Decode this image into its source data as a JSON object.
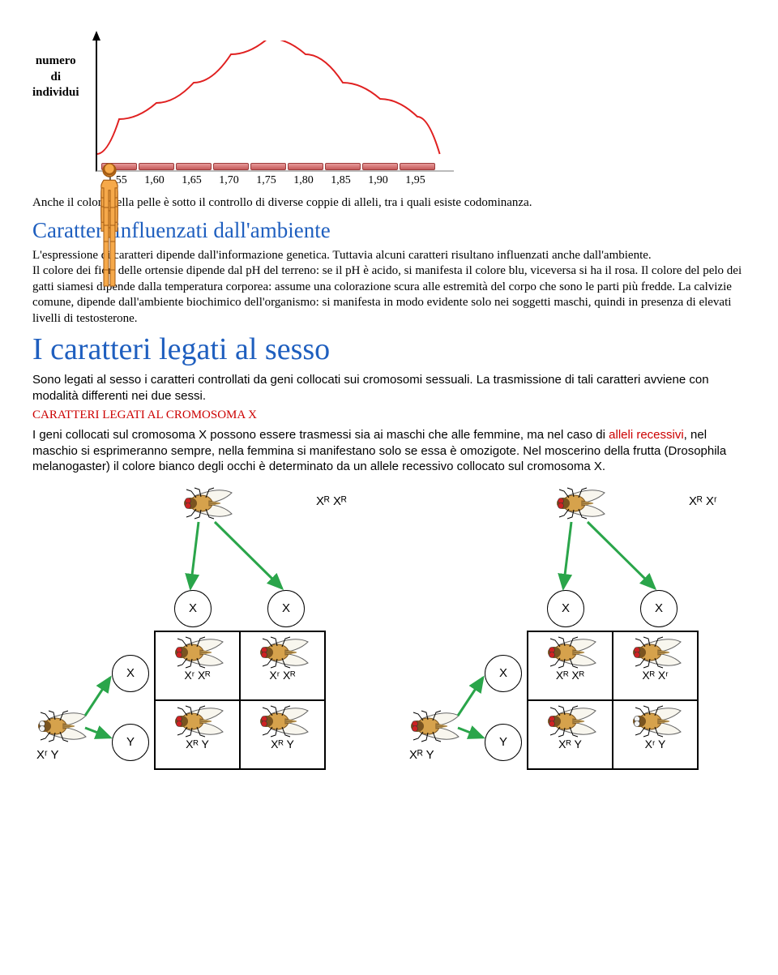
{
  "histogram": {
    "axis_label_lines": [
      "numero",
      "di",
      "individui"
    ],
    "x_ticks": [
      "1,55",
      "1,60",
      "1,65",
      "1,70",
      "1,75",
      "1,80",
      "1,85",
      "1,90",
      "1,95"
    ],
    "heights": [
      55,
      75,
      100,
      135,
      155,
      135,
      100,
      80,
      58
    ],
    "person_fill": "#f6a94a",
    "person_stroke": "#a35a12",
    "curve_color": "#e02020",
    "curve_width": 2
  },
  "text": {
    "codominanza": "Anche il colore della pelle è sotto il controllo di diverse coppie di alleli, tra i quali esiste codominanza.",
    "h_env": "Caratteri influenzati dall'ambiente",
    "env_body": "L'espressione di caratteri dipende dall'informazione genetica. Tuttavia alcuni caratteri risultano influenzati anche dall'ambiente.\nIl colore dei fiori delle ortensie dipende dal pH del terreno: se il pH è acido, si manifesta il colore blu, viceversa si ha il rosa. Il colore del pelo dei gatti siamesi dipende dalla temperatura corporea: assume una colorazione scura alle estremità del corpo che sono le parti più fredde. La calvizie comune, dipende dall'ambiente biochimico dell'organismo: si manifesta in modo evidente solo nei soggetti maschi, quindi in presenza di elevati livelli di testosterone.",
    "h_sex": "I caratteri legati al sesso",
    "sex_intro": "Sono legati al sesso i caratteri controllati da geni  collocati sui cromosomi sessuali. La trasmissione di tali caratteri avviene con modalità differenti nei due sessi.",
    "red_sub": "CARATTERI LEGATI AL CROMOSOMA X",
    "x_body_pre": "I geni collocati sul cromosoma X possono essere trasmessi sia ai maschi che alle femmine, ma nel caso di ",
    "x_body_red": "alleli recessivi",
    "x_body_post": ", nel maschio si esprimeranno sempre, nella femmina si manifestano solo se essa è omozigote. Nel moscerino della frutta (Drosophila melanogaster) il colore bianco degli occhi è determinato da un allele recessivo collocato sul cromosoma X."
  },
  "punnett": {
    "arrow_color": "#2aa54a",
    "fly_body": "#d6a24c",
    "fly_body_dark": "#7a5420",
    "eye_red": "#cc2222",
    "eye_white": "#f3f3f3",
    "left": {
      "mother_geno": "Xᴿ Xᴿ",
      "father_geno": "Xʳ Y",
      "mother_eye": "red",
      "father_eye": "white",
      "col_gametes": [
        "X",
        "X"
      ],
      "row_gametes": [
        "X",
        "Y"
      ],
      "cells": [
        {
          "eye": "red",
          "geno": "Xʳ Xᴿ"
        },
        {
          "eye": "red",
          "geno": "Xʳ Xᴿ"
        },
        {
          "eye": "red",
          "geno": "Xᴿ Y"
        },
        {
          "eye": "red",
          "geno": "Xᴿ Y"
        }
      ]
    },
    "right": {
      "mother_geno": "Xᴿ Xʳ",
      "father_geno": "Xᴿ Y",
      "mother_eye": "red",
      "father_eye": "red",
      "col_gametes": [
        "X",
        "X"
      ],
      "row_gametes": [
        "X",
        "Y"
      ],
      "cells": [
        {
          "eye": "red",
          "geno": "Xᴿ Xᴿ"
        },
        {
          "eye": "red",
          "geno": "Xᴿ Xʳ"
        },
        {
          "eye": "red",
          "geno": "Xᴿ Y"
        },
        {
          "eye": "white",
          "geno": "Xʳ Y"
        }
      ]
    }
  }
}
